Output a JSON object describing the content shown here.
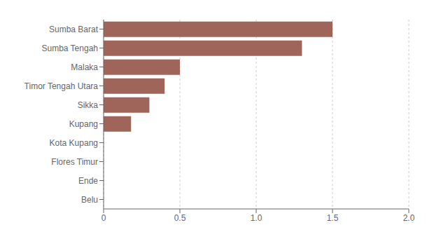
{
  "chart_data": {
    "type": "bar",
    "orientation": "horizontal",
    "categories": [
      "Sumba Barat",
      "Sumba Tengah",
      "Malaka",
      "Timor Tengah Utara",
      "Sikka",
      "Kupang",
      "Kota Kupang",
      "Flores Timur",
      "Ende",
      "Belu"
    ],
    "values": [
      1.5,
      1.3,
      0.5,
      0.4,
      0.3,
      0.18,
      0.0,
      0.0,
      0.0,
      0.0
    ],
    "color": "#a0655a",
    "xlim": [
      0,
      2.0
    ],
    "xticks": [
      0,
      0.5,
      {
        "value": 1.0,
        "label": "1.0"
      },
      1.5,
      {
        "value": 2.0,
        "label": "2.0"
      }
    ],
    "grid": true
  }
}
